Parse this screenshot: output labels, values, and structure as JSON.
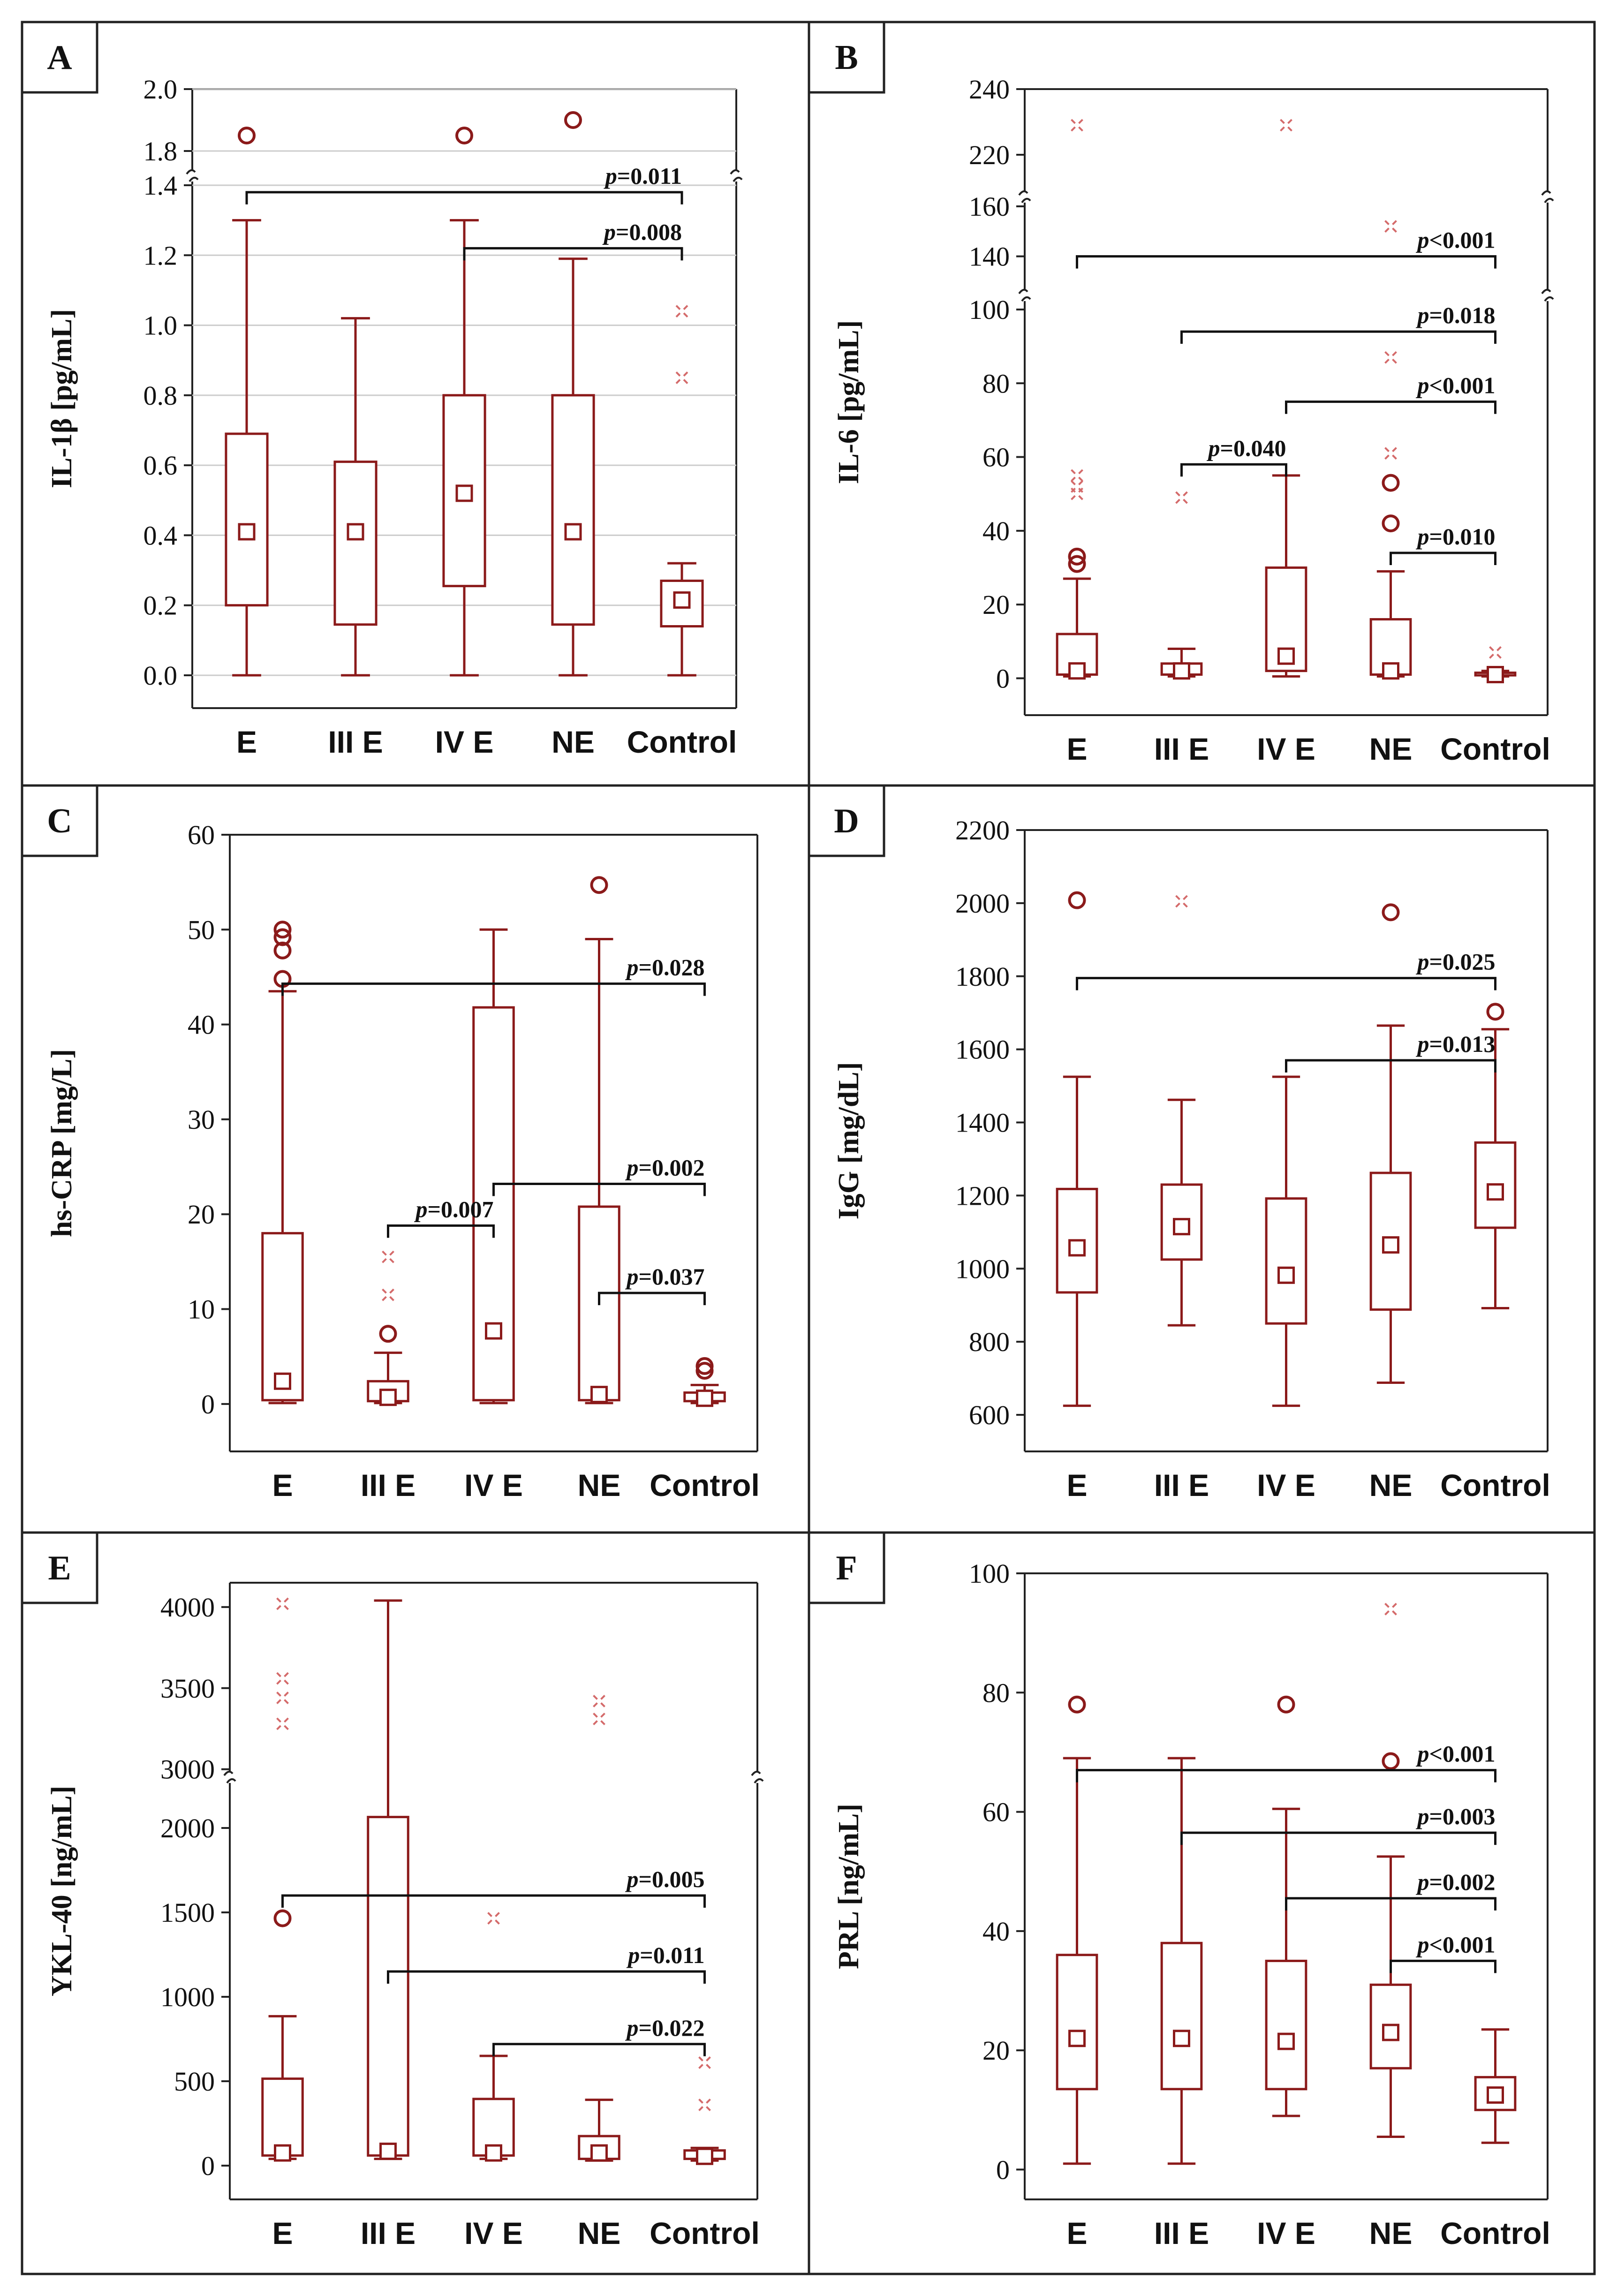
{
  "colors": {
    "box": "#8b1a1a",
    "extreme": "#d46a6a",
    "frame": "#222222",
    "grid": "#cccccc"
  },
  "chart_data": [
    {
      "panel": "A",
      "type": "box",
      "ylabel": "IL-1β [pg/mL]",
      "categories": [
        "E",
        "III E",
        "IV E",
        "NE",
        "Control"
      ],
      "ybreak": {
        "lower": [
          0.0,
          1.4
        ],
        "upper": [
          1.75,
          2.0
        ]
      },
      "ticks_lower": [
        "0.0",
        "0.2",
        "0.4",
        "0.6",
        "0.8",
        "1.0",
        "1.2",
        "1.4"
      ],
      "ticks_upper": [
        "1.8",
        "2.0"
      ],
      "grid": true,
      "boxes": [
        {
          "wlo": 0.0,
          "q1": 0.2,
          "med": 0.41,
          "q3": 0.69,
          "whi": 1.3,
          "outliers": [
            1.85
          ],
          "extremes": []
        },
        {
          "wlo": 0.0,
          "q1": 0.145,
          "med": 0.41,
          "q3": 0.61,
          "whi": 1.02,
          "outliers": [],
          "extremes": []
        },
        {
          "wlo": 0.0,
          "q1": 0.255,
          "med": 0.52,
          "q3": 0.8,
          "whi": 1.3,
          "outliers": [
            1.85
          ],
          "extremes": []
        },
        {
          "wlo": 0.0,
          "q1": 0.145,
          "med": 0.41,
          "q3": 0.8,
          "whi": 1.19,
          "outliers": [
            1.9
          ],
          "extremes": []
        },
        {
          "wlo": 0.0,
          "q1": 0.14,
          "med": 0.215,
          "q3": 0.27,
          "whi": 0.32,
          "outliers": [],
          "extremes": [
            1.04,
            0.85
          ]
        }
      ],
      "brackets": [
        {
          "from": 0,
          "to": 4,
          "y": 1.38,
          "label": "=0.011"
        },
        {
          "from": 2,
          "to": 4,
          "y": 1.22,
          "label": "=0.008"
        }
      ]
    },
    {
      "panel": "B",
      "type": "box",
      "ylabel": "IL-6 [pg/mL]",
      "categories": [
        "E",
        "III E",
        "IV E",
        "NE",
        "Control"
      ],
      "ybreak": {
        "lower": [
          -10,
          100
        ],
        "mid": [
          130,
          160
        ],
        "upper": [
          210,
          240
        ]
      },
      "ticks_lower": [
        "0",
        "20",
        "40",
        "60",
        "80",
        "100"
      ],
      "ticks_mid": [
        "140",
        "160"
      ],
      "ticks_upper": [
        "220",
        "240"
      ],
      "grid": false,
      "boxes": [
        {
          "wlo": 0.5,
          "q1": 1,
          "med": 2,
          "q3": 12,
          "whi": 27,
          "outliers": [
            33,
            31
          ],
          "extremes": [
            55,
            52,
            50,
            229
          ]
        },
        {
          "wlo": 0.5,
          "q1": 1,
          "med": 2,
          "q3": 4,
          "whi": 8,
          "outliers": [],
          "extremes": [
            49
          ]
        },
        {
          "wlo": 0.5,
          "q1": 2,
          "med": 6,
          "q3": 30,
          "whi": 55,
          "outliers": [],
          "extremes": [
            229
          ]
        },
        {
          "wlo": 0.5,
          "q1": 1,
          "med": 2,
          "q3": 16,
          "whi": 29,
          "outliers": [
            53,
            42
          ],
          "extremes": [
            61,
            87,
            152
          ]
        },
        {
          "wlo": 0.5,
          "q1": 0.8,
          "med": 1,
          "q3": 1.5,
          "whi": 2,
          "outliers": [],
          "extremes": [
            7
          ]
        }
      ],
      "brackets": [
        {
          "from": 0,
          "to": 4,
          "y": 140,
          "label": "<0.001"
        },
        {
          "from": 1,
          "to": 4,
          "y": 94,
          "label": "=0.018"
        },
        {
          "from": 2,
          "to": 4,
          "y": 75,
          "label": "<0.001"
        },
        {
          "from": 1,
          "to": 2,
          "y": 58,
          "label": "=0.040"
        },
        {
          "from": 3,
          "to": 4,
          "y": 34,
          "label": "=0.010"
        }
      ]
    },
    {
      "panel": "C",
      "type": "box",
      "ylabel": "hs-CRP [mg/L]",
      "categories": [
        "E",
        "III E",
        "IV E",
        "NE",
        "Control"
      ],
      "ylim": [
        -5,
        60
      ],
      "ticks": [
        "0",
        "10",
        "20",
        "30",
        "40",
        "50",
        "60"
      ],
      "grid": false,
      "boxes": [
        {
          "wlo": 0.1,
          "q1": 0.4,
          "med": 2.4,
          "q3": 18,
          "whi": 43.5,
          "outliers": [
            50,
            49.2,
            47.8,
            44.8
          ],
          "extremes": []
        },
        {
          "wlo": 0.1,
          "q1": 0.3,
          "med": 0.7,
          "q3": 2.4,
          "whi": 5.4,
          "outliers": [
            7.4
          ],
          "extremes": [
            15.5,
            11.5
          ]
        },
        {
          "wlo": 0.1,
          "q1": 0.4,
          "med": 7.7,
          "q3": 41.8,
          "whi": 50,
          "outliers": [],
          "extremes": []
        },
        {
          "wlo": 0.1,
          "q1": 0.4,
          "med": 1.0,
          "q3": 20.8,
          "whi": 49,
          "outliers": [
            54.7
          ],
          "extremes": []
        },
        {
          "wlo": 0.1,
          "q1": 0.3,
          "med": 0.6,
          "q3": 1.2,
          "whi": 2,
          "outliers": [
            4,
            3.5
          ],
          "extremes": []
        }
      ],
      "brackets": [
        {
          "from": 0,
          "to": 4,
          "y": 44.3,
          "label": "=0.028"
        },
        {
          "from": 2,
          "to": 4,
          "y": 23.2,
          "label": "=0.002"
        },
        {
          "from": 1,
          "to": 2,
          "y": 18.8,
          "label": "=0.007"
        },
        {
          "from": 3,
          "to": 4,
          "y": 11.7,
          "label": "=0.037"
        }
      ]
    },
    {
      "panel": "D",
      "type": "box",
      "ylabel": "IgG [mg/dL]",
      "categories": [
        "E",
        "III E",
        "IV E",
        "NE",
        "Control"
      ],
      "ylim": [
        500,
        2200
      ],
      "ticks": [
        "600",
        "800",
        "1000",
        "1200",
        "1400",
        "1600",
        "1800",
        "2000",
        "2200"
      ],
      "grid": false,
      "boxes": [
        {
          "wlo": 625,
          "q1": 935,
          "med": 1057,
          "q3": 1218,
          "whi": 1525,
          "outliers": [
            2008
          ],
          "extremes": []
        },
        {
          "wlo": 845,
          "q1": 1025,
          "med": 1115,
          "q3": 1230,
          "whi": 1462,
          "outliers": [],
          "extremes": [
            2005
          ]
        },
        {
          "wlo": 625,
          "q1": 850,
          "med": 982,
          "q3": 1192,
          "whi": 1525,
          "outliers": [],
          "extremes": []
        },
        {
          "wlo": 688,
          "q1": 888,
          "med": 1065,
          "q3": 1262,
          "whi": 1665,
          "outliers": [
            1975
          ],
          "extremes": []
        },
        {
          "wlo": 892,
          "q1": 1112,
          "med": 1210,
          "q3": 1345,
          "whi": 1655,
          "outliers": [
            1703
          ],
          "extremes": []
        }
      ],
      "brackets": [
        {
          "from": 0,
          "to": 4,
          "y": 1795,
          "label": "=0.025"
        },
        {
          "from": 2,
          "to": 4,
          "y": 1570,
          "label": "=0.013"
        }
      ]
    },
    {
      "panel": "E",
      "type": "box",
      "ylabel": "YKL-40 [ng/mL]",
      "categories": [
        "E",
        "III E",
        "IV E",
        "NE",
        "Control"
      ],
      "ybreak": {
        "lower": [
          -200,
          2300
        ],
        "upper": [
          2950,
          4150
        ]
      },
      "ticks_lower": [
        "0",
        "500",
        "1000",
        "1500",
        "2000"
      ],
      "ticks_upper": [
        "3000",
        "3500",
        "4000"
      ],
      "grid": false,
      "boxes": [
        {
          "wlo": 40,
          "q1": 60,
          "med": 75,
          "q3": 515,
          "whi": 885,
          "outliers": [
            1465
          ],
          "extremes": [
            4020,
            3560,
            3440,
            3280
          ]
        },
        {
          "wlo": 40,
          "q1": 60,
          "med": 85,
          "q3": 2065,
          "whi": 4040,
          "outliers": [],
          "extremes": []
        },
        {
          "wlo": 40,
          "q1": 60,
          "med": 75,
          "q3": 395,
          "whi": 650,
          "outliers": [],
          "extremes": [
            1465
          ]
        },
        {
          "wlo": 30,
          "q1": 40,
          "med": 75,
          "q3": 175,
          "whi": 390,
          "outliers": [],
          "extremes": [
            3420,
            3310
          ]
        },
        {
          "wlo": 30,
          "q1": 40,
          "med": 55,
          "q3": 90,
          "whi": 105,
          "outliers": [],
          "extremes": [
            610,
            360
          ]
        }
      ],
      "brackets": [
        {
          "from": 0,
          "to": 4,
          "y": 1600,
          "label": "=0.005"
        },
        {
          "from": 1,
          "to": 4,
          "y": 1150,
          "label": "=0.011"
        },
        {
          "from": 2,
          "to": 4,
          "y": 720,
          "label": "=0.022"
        }
      ]
    },
    {
      "panel": "F",
      "type": "box",
      "ylabel": "PRL [ng/mL]",
      "categories": [
        "E",
        "III E",
        "IV E",
        "NE",
        "Control"
      ],
      "ylim": [
        -5,
        100
      ],
      "ticks": [
        "0",
        "20",
        "40",
        "60",
        "80",
        "100"
      ],
      "grid": false,
      "boxes": [
        {
          "wlo": 1,
          "q1": 13.5,
          "med": 22,
          "q3": 36,
          "whi": 69,
          "outliers": [
            78
          ],
          "extremes": []
        },
        {
          "wlo": 1,
          "q1": 13.5,
          "med": 22,
          "q3": 38,
          "whi": 69,
          "outliers": [],
          "extremes": []
        },
        {
          "wlo": 9,
          "q1": 13.5,
          "med": 21.5,
          "q3": 35,
          "whi": 60.5,
          "outliers": [
            78
          ],
          "extremes": []
        },
        {
          "wlo": 5.5,
          "q1": 17,
          "med": 23,
          "q3": 31,
          "whi": 52.5,
          "outliers": [
            68.5
          ],
          "extremes": [
            94
          ]
        },
        {
          "wlo": 4.5,
          "q1": 10,
          "med": 12.5,
          "q3": 15.5,
          "whi": 23.5,
          "outliers": [],
          "extremes": []
        }
      ],
      "brackets": [
        {
          "from": 0,
          "to": 4,
          "y": 67,
          "label": "<0.001"
        },
        {
          "from": 1,
          "to": 4,
          "y": 56.5,
          "label": "=0.003"
        },
        {
          "from": 2,
          "to": 4,
          "y": 45.5,
          "label": "=0.002"
        },
        {
          "from": 3,
          "to": 4,
          "y": 35,
          "label": "<0.001"
        }
      ]
    }
  ]
}
